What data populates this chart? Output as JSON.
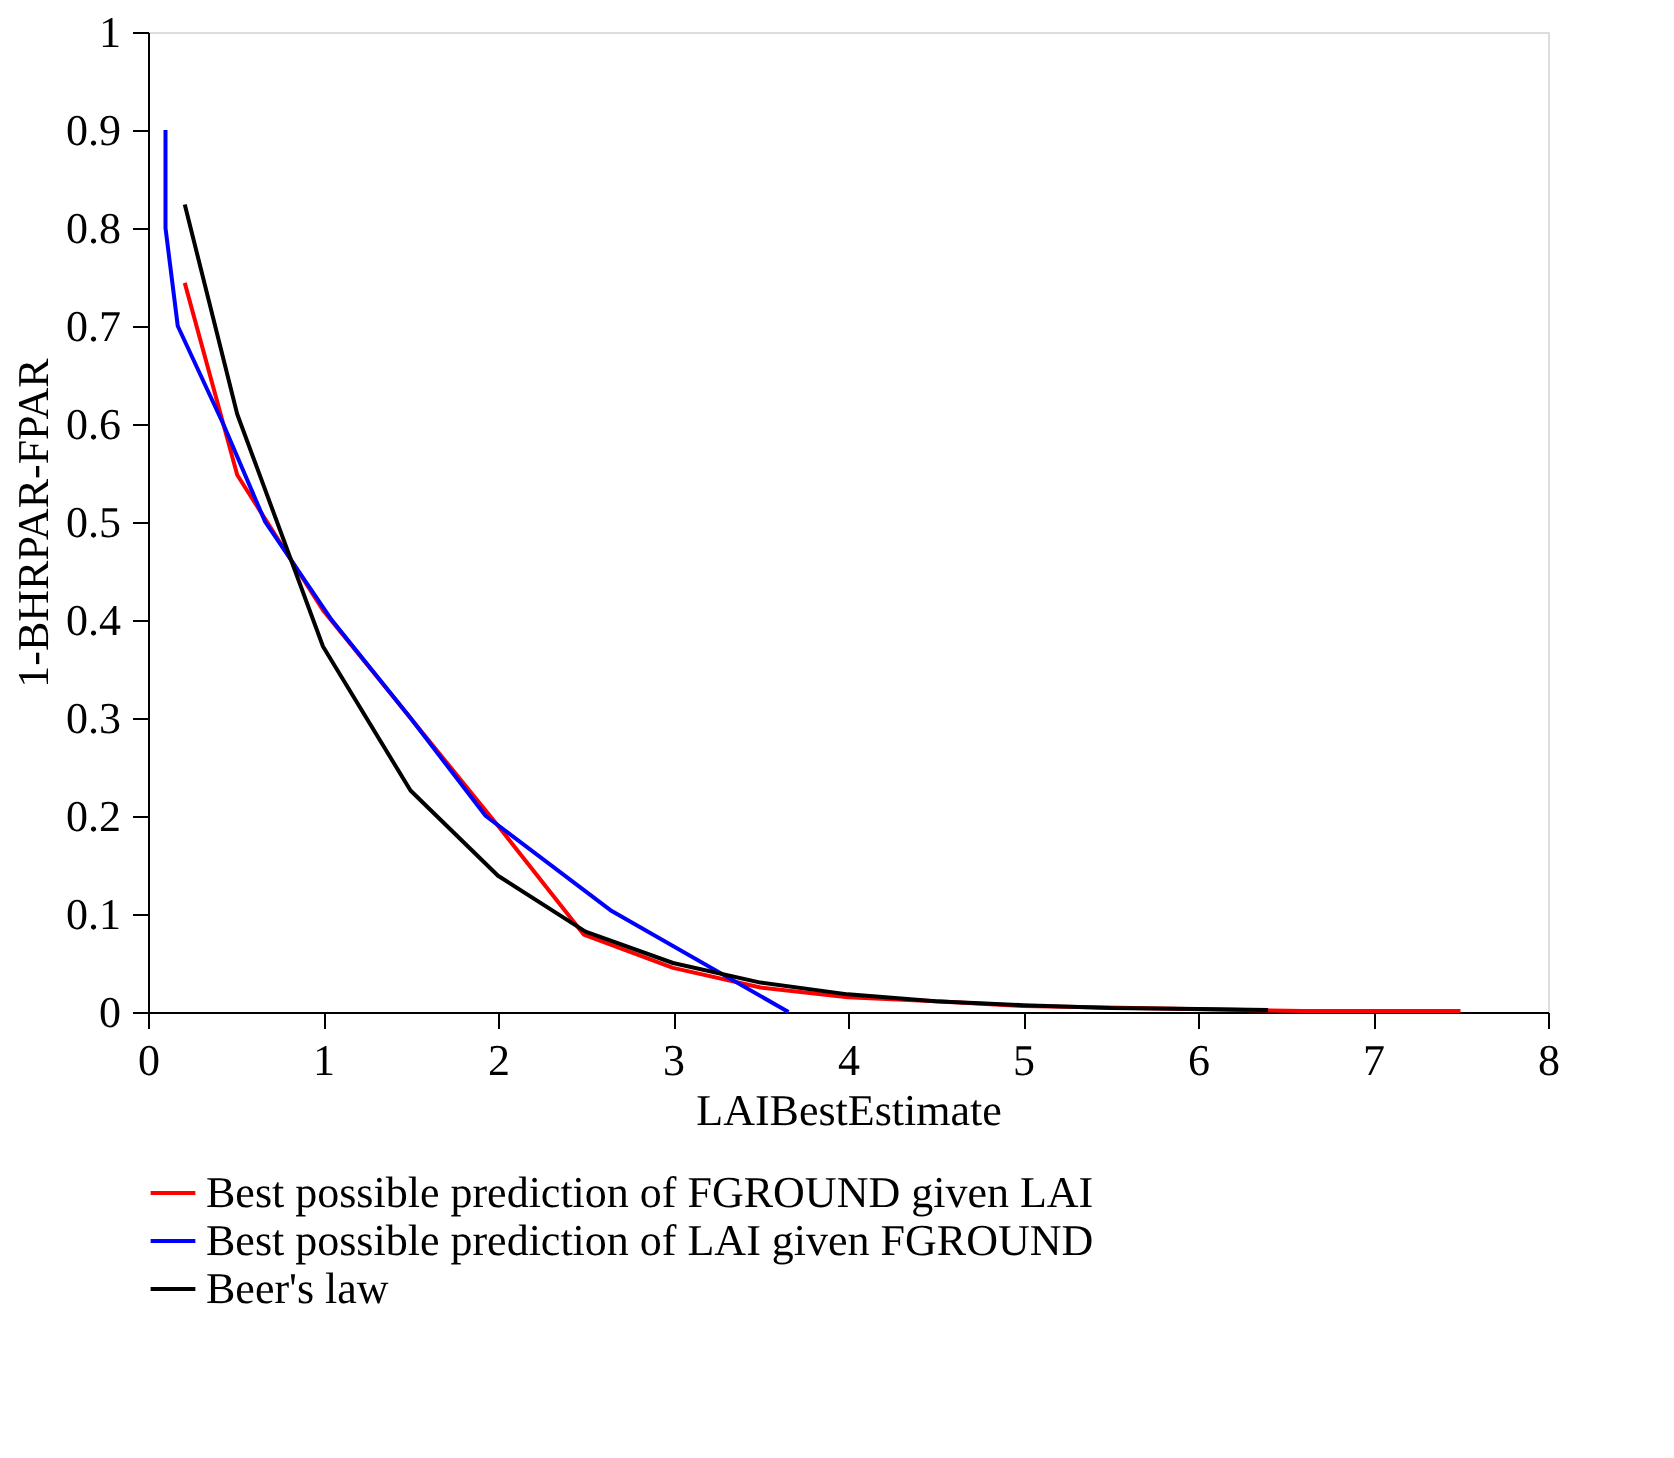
{
  "chart_data": {
    "type": "line",
    "xlabel": "LAIBestEstimate",
    "ylabel": "1-BHRPAR-FPAR",
    "xlim": [
      0,
      8
    ],
    "ylim": [
      0,
      1
    ],
    "xticks": [
      0,
      1,
      2,
      3,
      4,
      5,
      6,
      7,
      8
    ],
    "yticks": [
      0,
      0.1,
      0.2,
      0.3,
      0.4,
      0.5,
      0.6,
      0.7,
      0.8,
      0.9,
      1
    ],
    "grid": false,
    "legend": "bottom left",
    "marker": "none",
    "line_style": "solid",
    "series": [
      {
        "name": "Best possible prediction of FGROUND given LAI",
        "color": "#ff0000",
        "x": [
          0.21,
          0.51,
          1.0,
          1.5,
          2.0,
          2.49,
          3.0,
          3.5,
          4.0,
          4.5,
          5.0,
          6.6,
          7.0,
          7.5
        ],
        "values": [
          0.744,
          0.548,
          0.41,
          0.3,
          0.19,
          0.079,
          0.045,
          0.025,
          0.015,
          0.011,
          0.006,
          0.001,
          0.001,
          0.001
        ]
      },
      {
        "name": "Best possible prediction of LAI given FGROUND",
        "color": "#0000ff",
        "x": [
          0.1,
          0.1,
          0.17,
          0.43,
          0.67,
          1.05,
          1.5,
          1.93,
          2.65,
          3.66
        ],
        "values": [
          0.9,
          0.8,
          0.7,
          0.6,
          0.5,
          0.4,
          0.3,
          0.2,
          0.103,
          0
        ]
      },
      {
        "name": "Beer's law",
        "color": "#000000",
        "x": [
          0.21,
          0.51,
          1.0,
          1.5,
          2.0,
          2.5,
          3.0,
          3.5,
          4.0,
          4.5,
          5.0,
          5.5,
          6.0,
          6.4
        ],
        "values": [
          0.824,
          0.61,
          0.373,
          0.226,
          0.139,
          0.082,
          0.05,
          0.03,
          0.018,
          0.011,
          0.007,
          0.004,
          0.003,
          0.002
        ]
      }
    ]
  }
}
